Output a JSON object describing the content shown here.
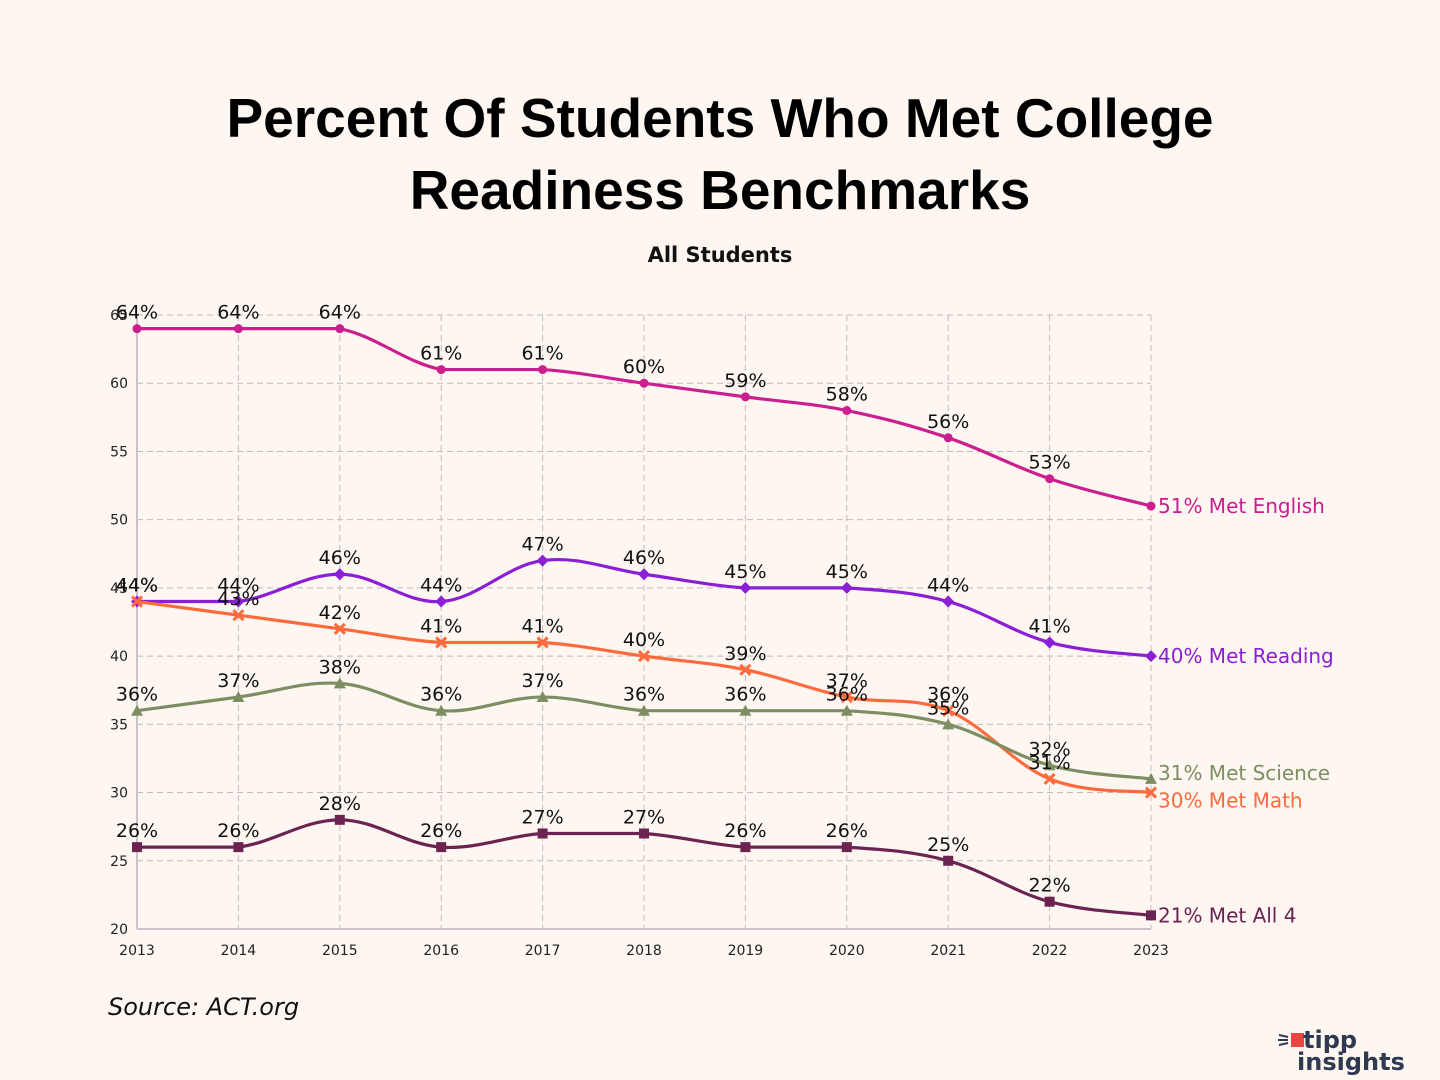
{
  "title_line1": "Percent Of Students Who Met College",
  "title_line2": "Readiness Benchmarks",
  "subtitle": "All Students",
  "source": "Source: ACT.org",
  "logo": {
    "line1": "tipp",
    "line2": "insights",
    "brand_color": "#e8473f",
    "text_color": "#2f3a52"
  },
  "chart_data": {
    "type": "line",
    "title": "Percent Of Students Who Met College Readiness Benchmarks",
    "subtitle": "All Students",
    "xlabel": "",
    "ylabel": "",
    "x": [
      2013,
      2014,
      2015,
      2016,
      2017,
      2018,
      2019,
      2020,
      2021,
      2022,
      2023
    ],
    "ylim": [
      20,
      65
    ],
    "yticks": [
      20,
      25,
      30,
      35,
      40,
      45,
      50,
      55,
      60,
      65
    ],
    "grid": true,
    "legend": "end-of-line labels (right)",
    "series": [
      {
        "name": "Met English",
        "color": "#cc1f8f",
        "marker": "circle",
        "values": [
          64,
          64,
          64,
          61,
          61,
          60,
          59,
          58,
          56,
          53,
          51
        ]
      },
      {
        "name": "Met Reading",
        "color": "#8a1fd6",
        "marker": "diamond",
        "values": [
          44,
          44,
          46,
          44,
          47,
          46,
          45,
          45,
          44,
          41,
          40
        ]
      },
      {
        "name": "Met Math",
        "color": "#ff6a3d",
        "marker": "x",
        "values": [
          44,
          43,
          42,
          41,
          41,
          40,
          39,
          37,
          36,
          31,
          30
        ]
      },
      {
        "name": "Met Science",
        "color": "#7d8f62",
        "marker": "triangle",
        "values": [
          36,
          37,
          38,
          36,
          37,
          36,
          36,
          36,
          35,
          32,
          31
        ]
      },
      {
        "name": "Met All 4",
        "color": "#6b2452",
        "marker": "square",
        "values": [
          26,
          26,
          28,
          26,
          27,
          27,
          26,
          26,
          25,
          22,
          21
        ]
      }
    ]
  }
}
